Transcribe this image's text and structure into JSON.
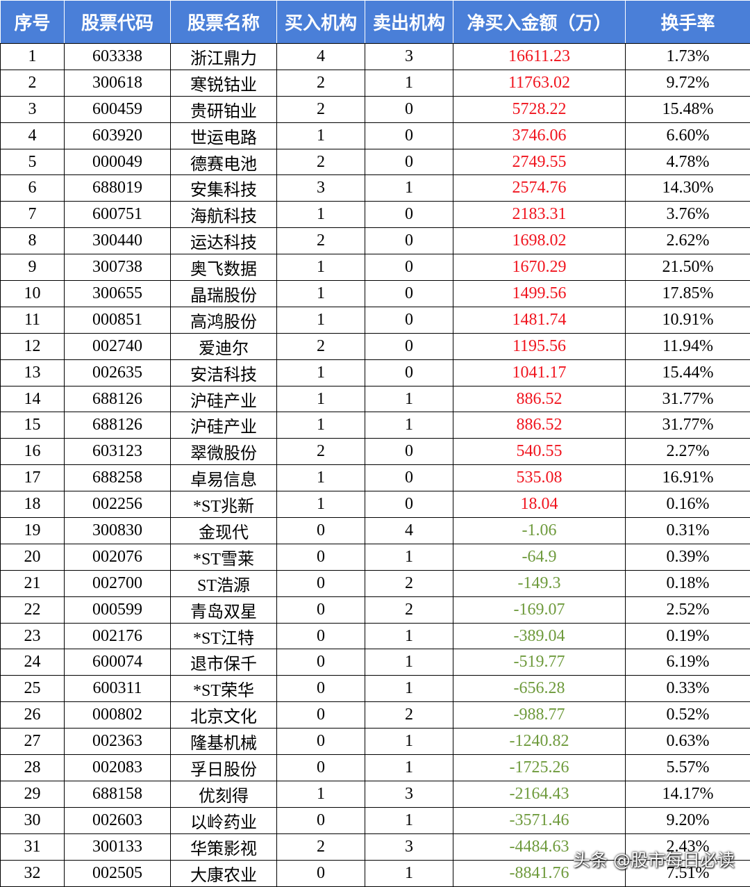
{
  "table": {
    "header": [
      "序号",
      "股票代码",
      "股票名称",
      "买入机构",
      "卖出机构",
      "净买入金额（万）",
      "换手率"
    ],
    "rows": [
      [
        "1",
        "603338",
        "浙江鼎力",
        "4",
        "3",
        "16611.23",
        "1.73%"
      ],
      [
        "2",
        "300618",
        "寒锐钴业",
        "2",
        "1",
        "11763.02",
        "9.72%"
      ],
      [
        "3",
        "600459",
        "贵研铂业",
        "2",
        "0",
        "5728.22",
        "15.48%"
      ],
      [
        "4",
        "603920",
        "世运电路",
        "1",
        "0",
        "3746.06",
        "6.60%"
      ],
      [
        "5",
        "000049",
        "德赛电池",
        "2",
        "0",
        "2749.55",
        "4.78%"
      ],
      [
        "6",
        "688019",
        "安集科技",
        "3",
        "1",
        "2574.76",
        "14.30%"
      ],
      [
        "7",
        "600751",
        "海航科技",
        "1",
        "0",
        "2183.31",
        "3.76%"
      ],
      [
        "8",
        "300440",
        "运达科技",
        "2",
        "0",
        "1698.02",
        "2.62%"
      ],
      [
        "9",
        "300738",
        "奥飞数据",
        "1",
        "0",
        "1670.29",
        "21.50%"
      ],
      [
        "10",
        "300655",
        "晶瑞股份",
        "1",
        "0",
        "1499.56",
        "17.85%"
      ],
      [
        "11",
        "000851",
        "高鸿股份",
        "1",
        "0",
        "1481.74",
        "10.91%"
      ],
      [
        "12",
        "002740",
        "爱迪尔",
        "2",
        "0",
        "1195.56",
        "11.94%"
      ],
      [
        "13",
        "002635",
        "安洁科技",
        "1",
        "0",
        "1041.17",
        "15.44%"
      ],
      [
        "14",
        "688126",
        "沪硅产业",
        "1",
        "1",
        "886.52",
        "31.77%"
      ],
      [
        "15",
        "688126",
        "沪硅产业",
        "1",
        "1",
        "886.52",
        "31.77%"
      ],
      [
        "16",
        "603123",
        "翠微股份",
        "2",
        "0",
        "540.55",
        "2.27%"
      ],
      [
        "17",
        "688258",
        "卓易信息",
        "1",
        "0",
        "535.08",
        "16.91%"
      ],
      [
        "18",
        "002256",
        "*ST兆新",
        "1",
        "0",
        "18.04",
        "0.16%"
      ],
      [
        "19",
        "300830",
        "金现代",
        "0",
        "4",
        "-1.06",
        "0.31%"
      ],
      [
        "20",
        "002076",
        "*ST雪莱",
        "0",
        "1",
        "-64.9",
        "0.39%"
      ],
      [
        "21",
        "002700",
        "ST浩源",
        "0",
        "2",
        "-149.3",
        "0.18%"
      ],
      [
        "22",
        "000599",
        "青岛双星",
        "0",
        "2",
        "-169.07",
        "2.52%"
      ],
      [
        "23",
        "002176",
        "*ST江特",
        "0",
        "1",
        "-389.04",
        "0.19%"
      ],
      [
        "24",
        "600074",
        "退市保千",
        "0",
        "1",
        "-519.77",
        "6.19%"
      ],
      [
        "25",
        "600311",
        "*ST荣华",
        "0",
        "1",
        "-656.28",
        "0.33%"
      ],
      [
        "26",
        "000802",
        "北京文化",
        "0",
        "2",
        "-988.77",
        "0.52%"
      ],
      [
        "27",
        "002363",
        "隆基机械",
        "0",
        "1",
        "-1240.82",
        "0.63%"
      ],
      [
        "28",
        "002083",
        "孚日股份",
        "0",
        "1",
        "-1725.26",
        "5.57%"
      ],
      [
        "29",
        "688158",
        "优刻得",
        "1",
        "3",
        "-2164.43",
        "14.17%"
      ],
      [
        "30",
        "002603",
        "以岭药业",
        "0",
        "1",
        "-3571.46",
        "9.20%"
      ],
      [
        "31",
        "300133",
        "华策影视",
        "2",
        "3",
        "-4484.63",
        "2.43%"
      ],
      [
        "32",
        "002505",
        "大康农业",
        "0",
        "1",
        "-8841.76",
        "7.51%"
      ]
    ]
  },
  "watermark": "头条 @股市每日必读"
}
